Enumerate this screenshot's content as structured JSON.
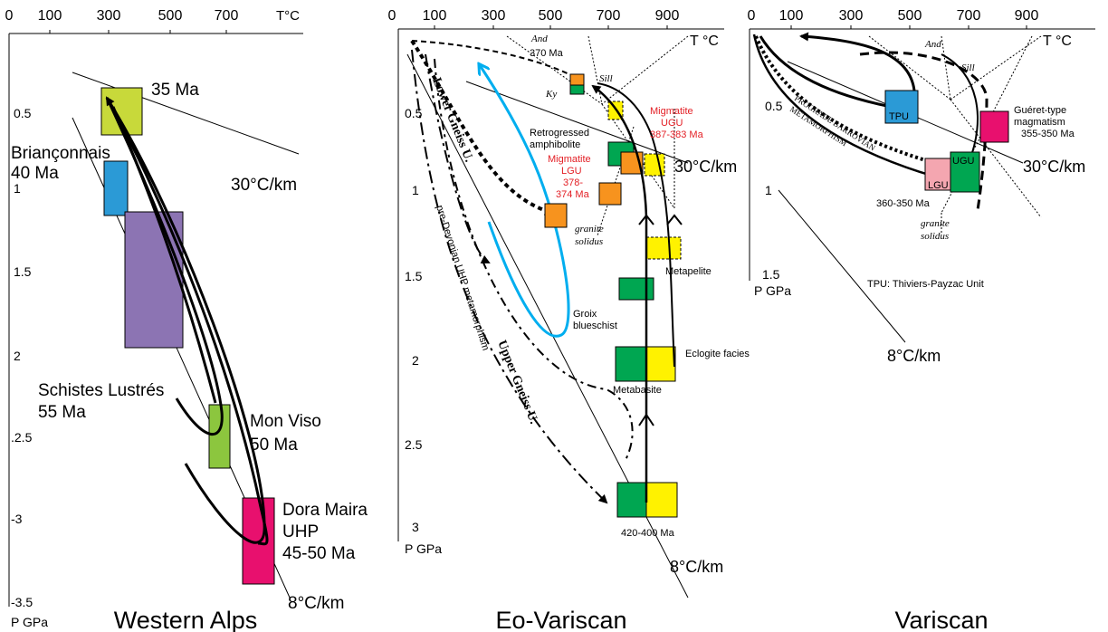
{
  "colors": {
    "yellow_green": "#c8d93a",
    "blue": "#2b9ad6",
    "purple": "#8c74b3",
    "light_green": "#8cc63e",
    "magenta": "#e8106e",
    "orange": "#f7931e",
    "green": "#00a651",
    "yellow": "#fff200",
    "pink": "#f4a6b0",
    "cyan_path": "#00aeef",
    "red_text": "#e31e24"
  },
  "panels": {
    "western_alps": {
      "title": "Western Alps",
      "t_ticks": [
        "0",
        "100",
        "300",
        "500",
        "700"
      ],
      "t_unit": "T°C",
      "p_ticks": [
        "0.5",
        "1",
        "1.5",
        "2",
        ".2.5",
        "-3",
        "-3.5"
      ],
      "p_unit": "P GPa",
      "labels": {
        "ma35": "35 Ma",
        "briancon1": "Briançonnais",
        "briancon2": "40 Ma",
        "schistes1": "Schistes Lustrés",
        "schistes2": "55 Ma",
        "monviso1": "Mon Viso",
        "monviso2": "50 Ma",
        "dora1": "Dora Maira",
        "dora2": "UHP",
        "dora3": "45-50 Ma",
        "gradient30": "30°C/km",
        "gradient8": "8°C/km"
      }
    },
    "eo_variscan": {
      "title": "Eo-Variscan",
      "t_ticks": [
        "0",
        "100",
        "300",
        "500",
        "700",
        "900"
      ],
      "t_unit": "T °C",
      "p_ticks": [
        "0.5",
        "1",
        "1.5",
        "2",
        "2.5",
        "3"
      ],
      "p_unit": "P GPa",
      "labels": {
        "ma370": "370 Ma",
        "and": "And",
        "sill": "Sill",
        "ky": "Ky",
        "lower_gneiss": "Lower Gneiss U.",
        "upper_gneiss": "Upper Gneiss U.",
        "pre_devonian": "pre-Devonian UHP metamorphism",
        "retro1": "Retrogressed",
        "retro2": "amphibolite",
        "mig_ugu1": "Migmatite",
        "mig_ugu2": "UGU",
        "mig_ugu3": "387-383 Ma",
        "mig_lgu1": "Migmatite",
        "mig_lgu2": "LGU",
        "mig_lgu3": "378-",
        "mig_lgu4": "374 Ma",
        "gradient30": "30°C/km",
        "granite1": "granite",
        "granite2": "solidus",
        "metapelite": "Metapelite",
        "groix1": "Groix",
        "groix2": "blueschist",
        "eclogite": "Eclogite facies",
        "metabasite": "Metabasite",
        "ma420": "420-400 Ma",
        "gradient8": "8°C/km"
      }
    },
    "variscan": {
      "title": "Variscan",
      "t_ticks": [
        "0",
        "100",
        "300",
        "500",
        "700",
        "900"
      ],
      "t_unit": "T °C",
      "p_ticks": [
        "0.5",
        "1",
        "1.5"
      ],
      "p_unit": "P GPa",
      "labels": {
        "and": "And",
        "sill": "Sill",
        "tpu": "TPU",
        "gueret1": "Guéret-type",
        "gueret2": "magmatism",
        "gueret3": "355-350 Ma",
        "prograde1": "PROGRADE BARROVIAN",
        "prograde2": "METAMORPHISM",
        "lgu": "LGU",
        "ugu": "UGU",
        "gradient30": "30°C/km",
        "ma360": "360-350 Ma",
        "granite1": "granite",
        "granite2": "solidus",
        "tpu_note": "TPU: Thiviers-Payzac Unit",
        "gradient8": "8°C/km"
      }
    }
  }
}
